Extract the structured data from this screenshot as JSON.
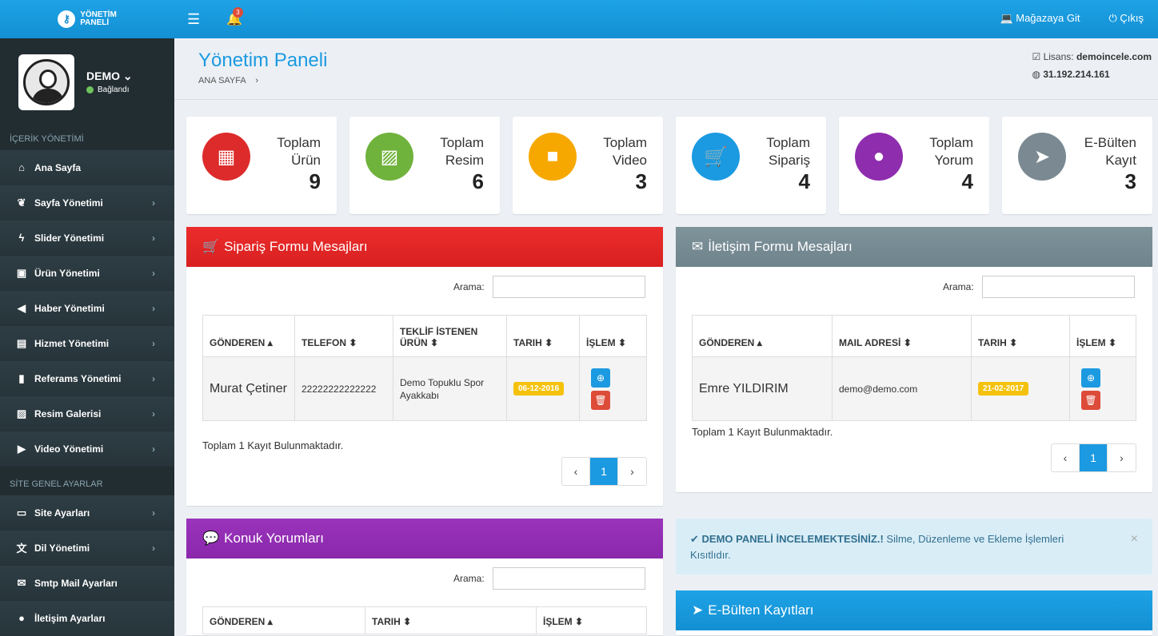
{
  "header": {
    "logo_line1": "YÖNETİM",
    "logo_line2": "PANELİ",
    "notif_count": "3",
    "store_link": "Mağazaya Git",
    "logout": "Çıkış"
  },
  "user": {
    "name": "DEMO",
    "status": "Bağlandı"
  },
  "sidebar": {
    "section1": "İÇERİK YÖNETİMİ",
    "items1": [
      {
        "label": "Ana Sayfa",
        "icon": "home-icon",
        "glyph": "⌂",
        "chevron": false
      },
      {
        "label": "Sayfa Yönetimi",
        "icon": "leaf-icon",
        "glyph": "❦",
        "chevron": true
      },
      {
        "label": "Slider Yönetimi",
        "icon": "bolt-icon",
        "glyph": "ϟ",
        "chevron": true
      },
      {
        "label": "Ürün Yönetimi",
        "icon": "cubes-icon",
        "glyph": "▣",
        "chevron": true
      },
      {
        "label": "Haber Yönetimi",
        "icon": "bullhorn-icon",
        "glyph": "◀",
        "chevron": true
      },
      {
        "label": "Hizmet Yönetimi",
        "icon": "briefcase-icon",
        "glyph": "▤",
        "chevron": true
      },
      {
        "label": "Referams Yönetimi",
        "icon": "bookmark-icon",
        "glyph": "▮",
        "chevron": true
      },
      {
        "label": "Resim Galerisi",
        "icon": "picture-icon",
        "glyph": "▨",
        "chevron": true
      },
      {
        "label": "Video Yönetimi",
        "icon": "video-icon",
        "glyph": "▶",
        "chevron": true
      }
    ],
    "section2": "SİTE GENEL AYARLAR",
    "items2": [
      {
        "label": "Site Ayarları",
        "icon": "desktop-icon",
        "glyph": "▭",
        "chevron": true
      },
      {
        "label": "Dil Yönetimi",
        "icon": "language-icon",
        "glyph": "文",
        "chevron": true
      },
      {
        "label": "Smtp Mail Ayarları",
        "icon": "envelope-icon",
        "glyph": "✉",
        "chevron": false
      },
      {
        "label": "İletişim Ayarları",
        "icon": "map-marker-icon",
        "glyph": "●",
        "chevron": false
      }
    ]
  },
  "page": {
    "title": "Yönetim Paneli",
    "breadcrumb": "ANA SAYFA",
    "license_label": "Lisans:",
    "license_value": "demoincele.com",
    "ip": "31.192.214.161"
  },
  "stats": [
    {
      "line1": "Toplam",
      "line2": "Ürün",
      "value": "9",
      "color": "#dd2b2b",
      "icon": "cubes-icon",
      "glyph": "▦"
    },
    {
      "line1": "Toplam",
      "line2": "Resim",
      "value": "6",
      "color": "#6fb23c",
      "icon": "picture-icon",
      "glyph": "▨"
    },
    {
      "line1": "Toplam",
      "line2": "Video",
      "value": "3",
      "color": "#f7a800",
      "icon": "video-camera-icon",
      "glyph": "■"
    },
    {
      "line1": "Toplam",
      "line2": "Sipariş",
      "value": "4",
      "color": "#1b9ae1",
      "icon": "cart-icon",
      "glyph": "🛒"
    },
    {
      "line1": "Toplam",
      "line2": "Yorum",
      "value": "4",
      "color": "#8e2dae",
      "icon": "comment-icon",
      "glyph": "●"
    },
    {
      "line1": "E-Bülten",
      "line2": "Kayıt",
      "value": "3",
      "color": "#7b8a92",
      "icon": "paper-plane-icon",
      "glyph": "➤"
    }
  ],
  "orders": {
    "title": "Sipariş Formu Mesajları",
    "search_label": "Arama:",
    "columns": [
      "GÖNDEREN",
      "TELEFON",
      "TEKLİF İSTENEN ÜRÜN",
      "TARIH",
      "İŞLEM"
    ],
    "row": {
      "sender": "Murat Çetiner",
      "phone": "22222222222222",
      "product": "Demo Topuklu Spor Ayakkabı",
      "date": "06-12-2016"
    },
    "total": "Toplam 1 Kayıt Bulunmaktadır.",
    "page": "1"
  },
  "contact": {
    "title": "İletişim Formu Mesajları",
    "search_label": "Arama:",
    "columns": [
      "GÖNDEREN",
      "MAIL ADRESİ",
      "TARIH",
      "İŞLEM"
    ],
    "row": {
      "sender": "Emre YILDIRIM",
      "mail": "demo@demo.com",
      "date": "21-02-2017"
    },
    "total": "Toplam 1 Kayıt Bulunmaktadır.",
    "page": "1"
  },
  "guest": {
    "title": "Konuk Yorumları",
    "search_label": "Arama:",
    "columns": [
      "GÖNDEREN",
      "TARIH",
      "İŞLEM"
    ]
  },
  "alert": {
    "strong": "DEMO PANELİ İNCELEMEKTESİNİZ.!",
    "text": " Silme, Düzenleme ve Ekleme İşlemleri Kısıtlıdır.",
    "close": "×"
  },
  "newsletter": {
    "title": "E-Bülten Kayıtları"
  },
  "colors": {
    "accent": "#1b9ae1",
    "red": "#e52a2a",
    "gray": "#788d96",
    "purple": "#8e2dae"
  }
}
